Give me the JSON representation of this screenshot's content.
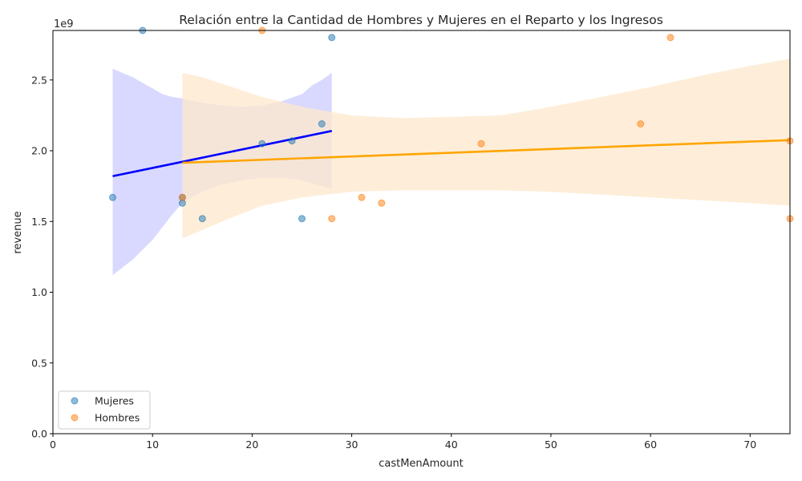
{
  "chart_data": {
    "type": "scatter",
    "title": "Relación entre la Cantidad de Hombres y Mujeres en el Reparto y los Ingresos",
    "xlabel": "castMenAmount",
    "ylabel": "revenue",
    "y_offset_label": "1e9",
    "xlim": [
      0,
      74
    ],
    "ylim": [
      0,
      2.85
    ],
    "x_ticks": [
      0,
      10,
      20,
      30,
      40,
      50,
      60,
      70
    ],
    "x_tick_labels": [
      "0",
      "10",
      "20",
      "30",
      "40",
      "50",
      "60",
      "70"
    ],
    "y_ticks": [
      0,
      0.5,
      1.0,
      1.5,
      2.0,
      2.5
    ],
    "y_tick_labels": [
      "0.0",
      "0.5",
      "1.0",
      "1.5",
      "2.0",
      "2.5"
    ],
    "grid": false,
    "legend_position": "lower-left",
    "series": [
      {
        "name": "Mujeres",
        "color": "#1f77b4",
        "line_color": "#0000ff",
        "band_color": "#ccccff",
        "points": [
          [
            9,
            2.85
          ],
          [
            28,
            2.8
          ],
          [
            27,
            2.19
          ],
          [
            21,
            2.05
          ],
          [
            24,
            2.07
          ],
          [
            6,
            1.67
          ],
          [
            13,
            1.67
          ],
          [
            13,
            1.63
          ],
          [
            15,
            1.52
          ],
          [
            25,
            1.52
          ]
        ],
        "regression": {
          "x": [
            6,
            28
          ],
          "y": [
            1.82,
            2.14
          ]
        },
        "ci_band": {
          "x": [
            6,
            8,
            10,
            11,
            12,
            13,
            15,
            17,
            19,
            21,
            23,
            25,
            26,
            27,
            28
          ],
          "upper": [
            2.58,
            2.52,
            2.44,
            2.4,
            2.38,
            2.37,
            2.34,
            2.32,
            2.31,
            2.32,
            2.35,
            2.4,
            2.46,
            2.5,
            2.55
          ],
          "lower": [
            1.12,
            1.23,
            1.37,
            1.46,
            1.55,
            1.63,
            1.71,
            1.76,
            1.79,
            1.81,
            1.81,
            1.79,
            1.77,
            1.75,
            1.73
          ]
        }
      },
      {
        "name": "Hombres",
        "color": "#ff7f0e",
        "line_color": "#ffa500",
        "band_color": "#fde8cc",
        "points": [
          [
            21,
            2.85
          ],
          [
            62,
            2.8
          ],
          [
            59,
            2.19
          ],
          [
            43,
            2.05
          ],
          [
            74,
            2.07
          ],
          [
            13,
            1.67
          ],
          [
            31,
            1.67
          ],
          [
            33,
            1.63
          ],
          [
            28,
            1.52
          ],
          [
            74,
            1.52
          ]
        ],
        "regression": {
          "x": [
            13,
            74
          ],
          "y": [
            1.915,
            2.075
          ]
        },
        "ci_band": {
          "x": [
            13,
            15,
            18,
            21,
            25,
            30,
            35,
            40,
            45,
            50,
            55,
            60,
            65,
            70,
            74
          ],
          "upper": [
            2.55,
            2.52,
            2.45,
            2.38,
            2.31,
            2.25,
            2.23,
            2.24,
            2.25,
            2.31,
            2.38,
            2.45,
            2.53,
            2.6,
            2.65
          ],
          "lower": [
            1.38,
            1.44,
            1.53,
            1.61,
            1.67,
            1.71,
            1.72,
            1.72,
            1.72,
            1.71,
            1.69,
            1.67,
            1.65,
            1.63,
            1.61
          ]
        }
      }
    ]
  }
}
